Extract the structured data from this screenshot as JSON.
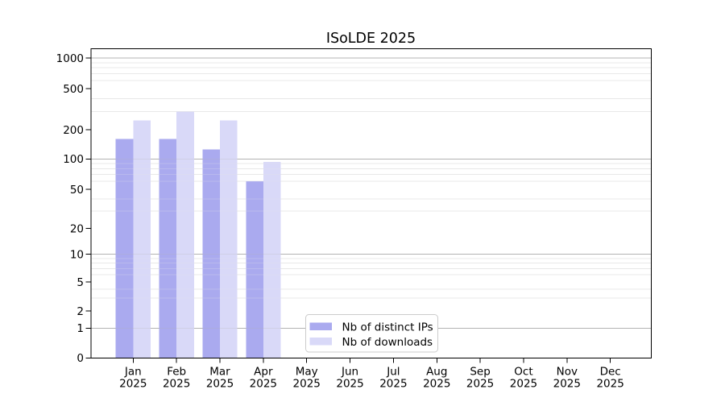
{
  "chart_data": {
    "type": "bar",
    "title": "ISoLDE 2025",
    "months": [
      "Jan",
      "Feb",
      "Mar",
      "Apr",
      "May",
      "Jun",
      "Jul",
      "Aug",
      "Sep",
      "Oct",
      "Nov",
      "Dec"
    ],
    "year_label": "2025",
    "categories": [
      "Jan 2025",
      "Feb 2025",
      "Mar 2025",
      "Apr 2025",
      "May 2025",
      "Jun 2025",
      "Jul 2025",
      "Aug 2025",
      "Sep 2025",
      "Oct 2025",
      "Nov 2025",
      "Dec 2025"
    ],
    "series": [
      {
        "name": "Nb of distinct IPs",
        "color": "#aaaaef",
        "values": [
          160,
          160,
          125,
          60,
          0,
          0,
          0,
          0,
          0,
          0,
          0,
          0
        ]
      },
      {
        "name": "Nb of downloads",
        "color": "#d9d9f8",
        "values": [
          245,
          300,
          245,
          93,
          0,
          0,
          0,
          0,
          0,
          0,
          0,
          0
        ]
      }
    ],
    "y_axis": {
      "scale": "symlog",
      "tick_labels": [
        1000,
        500,
        200,
        100,
        50,
        20,
        10,
        5,
        2,
        1,
        0
      ],
      "major_gridlines": [
        1,
        10,
        100,
        1000
      ],
      "minor_gridlines": [
        3,
        4,
        6,
        7,
        8,
        9,
        30,
        40,
        60,
        70,
        80,
        90,
        300,
        400,
        600,
        700,
        800,
        900
      ],
      "range": [
        0,
        1000
      ]
    },
    "legend": {
      "position": "lower-center-inside"
    },
    "grid": "on"
  },
  "style": {
    "major_grid_color": "#b3b3b3",
    "minor_grid_color": "#e8e8e8",
    "spine_color": "#000000",
    "legend_border_color": "#cccccc",
    "background": "#ffffff"
  }
}
